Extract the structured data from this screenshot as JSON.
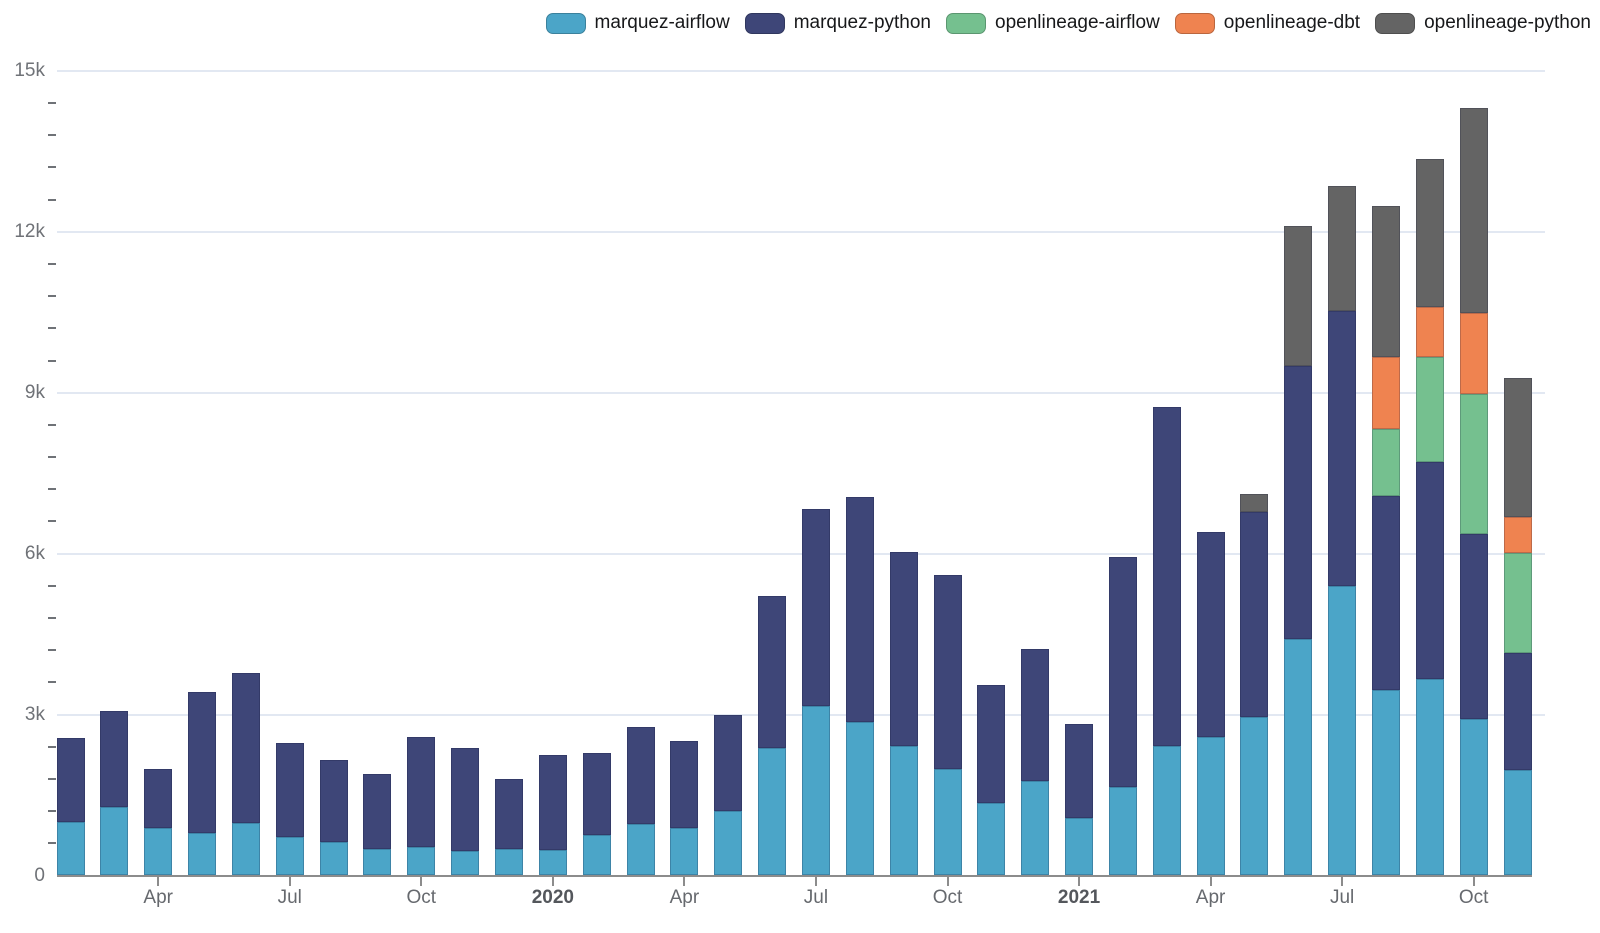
{
  "legend": {
    "position": "top-right",
    "items": [
      "marquez-airflow",
      "marquez-python",
      "openlineage-airflow",
      "openlineage-dbt",
      "openlineage-python"
    ]
  },
  "colors": {
    "marquez-airflow": "#4BA5C8",
    "marquez-python": "#3E4678",
    "openlineage-airflow": "#75C08F",
    "openlineage-dbt": "#EF8350",
    "openlineage-python": "#646464",
    "gridline": "#e2e8f2",
    "axis_line": "#8c8c8c",
    "tick_label": "#6f7277"
  },
  "chart_data": {
    "type": "bar",
    "stacked": true,
    "title": "",
    "xlabel": "",
    "ylabel": "",
    "grid": "horizontal",
    "categories": [
      "Feb 2019",
      "Mar 2019",
      "Apr 2019",
      "May 2019",
      "Jun 2019",
      "Jul 2019",
      "Aug 2019",
      "Sep 2019",
      "Oct 2019",
      "Nov 2019",
      "Dec 2019",
      "Jan 2020",
      "Feb 2020",
      "Mar 2020",
      "Apr 2020",
      "May 2020",
      "Jun 2020",
      "Jul 2020",
      "Aug 2020",
      "Sep 2020",
      "Oct 2020",
      "Nov 2020",
      "Dec 2020",
      "Jan 2021",
      "Feb 2021",
      "Mar 2021",
      "Apr 2021",
      "May 2021",
      "Jun 2021",
      "Jul 2021",
      "Aug 2021",
      "Sep 2021",
      "Oct 2021",
      "Nov 2021"
    ],
    "series": [
      {
        "name": "marquez-airflow",
        "color": "#4BA5C8",
        "values": [
          1000,
          1270,
          880,
          800,
          970,
          710,
          620,
          490,
          540,
          460,
          490,
          470,
          750,
          960,
          890,
          1210,
          2380,
          3160,
          2860,
          2410,
          1990,
          1350,
          1760,
          1070,
          1650,
          2420,
          2590,
          2960,
          4410,
          5400,
          3450,
          3660,
          2920,
          1970
        ]
      },
      {
        "name": "marquez-python",
        "color": "#3E4678",
        "values": [
          1570,
          1790,
          1110,
          2630,
          2800,
          1760,
          1540,
          1410,
          2050,
          1920,
          1310,
          1780,
          1530,
          1800,
          1610,
          1790,
          2830,
          3670,
          4190,
          3620,
          3610,
          2210,
          2470,
          1760,
          4290,
          6320,
          3810,
          3810,
          5090,
          5120,
          3630,
          4040,
          3440,
          2170
        ]
      },
      {
        "name": "openlineage-airflow",
        "color": "#75C08F",
        "values": [
          0,
          0,
          0,
          0,
          0,
          0,
          0,
          0,
          0,
          0,
          0,
          0,
          0,
          0,
          0,
          0,
          0,
          0,
          0,
          0,
          0,
          0,
          0,
          0,
          0,
          0,
          0,
          0,
          0,
          0,
          1240,
          1970,
          2610,
          1880
        ]
      },
      {
        "name": "openlineage-dbt",
        "color": "#EF8350",
        "values": [
          0,
          0,
          0,
          0,
          0,
          0,
          0,
          0,
          0,
          0,
          0,
          0,
          0,
          0,
          0,
          0,
          0,
          0,
          0,
          0,
          0,
          0,
          0,
          0,
          0,
          0,
          0,
          0,
          0,
          0,
          1340,
          930,
          1520,
          660
        ]
      },
      {
        "name": "openlineage-python",
        "color": "#646464",
        "values": [
          0,
          0,
          0,
          0,
          0,
          0,
          0,
          0,
          0,
          0,
          0,
          0,
          0,
          0,
          0,
          0,
          0,
          0,
          0,
          0,
          0,
          0,
          0,
          0,
          0,
          0,
          0,
          340,
          2600,
          2340,
          2830,
          2750,
          3820,
          2600
        ]
      }
    ],
    "y_axis": {
      "min": 0,
      "max": 15000,
      "major_tick_step": 3000,
      "minor_tick_step": 600,
      "tick_labels": [
        {
          "value": 0,
          "label": "0"
        },
        {
          "value": 3000,
          "label": "3k"
        },
        {
          "value": 6000,
          "label": "6k"
        },
        {
          "value": 9000,
          "label": "9k"
        },
        {
          "value": 12000,
          "label": "12k"
        },
        {
          "value": 15000,
          "label": "15k"
        }
      ]
    },
    "x_axis": {
      "ticks": [
        {
          "index": 2,
          "label": "Apr",
          "bold": false
        },
        {
          "index": 5,
          "label": "Jul",
          "bold": false
        },
        {
          "index": 8,
          "label": "Oct",
          "bold": false
        },
        {
          "index": 11,
          "label": "2020",
          "bold": true
        },
        {
          "index": 14,
          "label": "Apr",
          "bold": false
        },
        {
          "index": 17,
          "label": "Jul",
          "bold": false
        },
        {
          "index": 20,
          "label": "Oct",
          "bold": false
        },
        {
          "index": 23,
          "label": "2021",
          "bold": true
        },
        {
          "index": 26,
          "label": "Apr",
          "bold": false
        },
        {
          "index": 29,
          "label": "Jul",
          "bold": false
        },
        {
          "index": 32,
          "label": "Oct",
          "bold": false
        }
      ]
    },
    "legend_position": "top-right"
  }
}
